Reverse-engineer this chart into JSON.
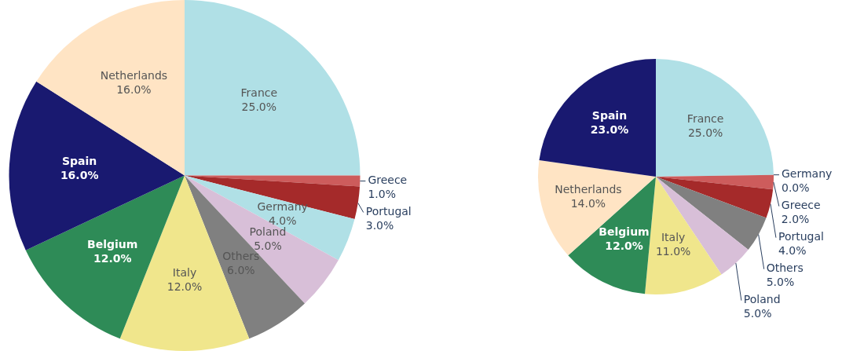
{
  "chart_data": [
    {
      "type": "pie",
      "categories": [
        "France",
        "Greece",
        "Portugal",
        "Germany",
        "Poland",
        "Others",
        "Italy",
        "Belgium",
        "Spain",
        "Netherlands"
      ],
      "values": [
        25,
        1,
        3,
        4,
        5,
        6,
        12,
        12,
        16,
        16
      ],
      "value_labels": [
        "25.0%",
        "1.0%",
        "3.0%",
        "4.0%",
        "5.0%",
        "6.0%",
        "12.0%",
        "12.0%",
        "16.0%",
        "16.0%"
      ],
      "colors": [
        "#b0e0e6",
        "#cd5c5c",
        "#a52a2a",
        "#b0e0e6",
        "#d8bfd8",
        "#808080",
        "#f0e68c",
        "#2e8b57",
        "#191970",
        "#ffe4c4"
      ]
    },
    {
      "type": "pie",
      "categories": [
        "France",
        "Germany",
        "Greece",
        "Portugal",
        "Others",
        "Poland",
        "Italy",
        "Belgium",
        "Netherlands",
        "Spain"
      ],
      "values": [
        25,
        0,
        2,
        4,
        5,
        5,
        11,
        12,
        14,
        23
      ],
      "value_labels": [
        "25.0%",
        "0.0%",
        "2.0%",
        "4.0%",
        "5.0%",
        "5.0%",
        "11.0%",
        "12.0%",
        "14.0%",
        "23.0%"
      ],
      "colors": [
        "#b0e0e6",
        "#cd5c5c",
        "#cd5c5c",
        "#a52a2a",
        "#808080",
        "#d8bfd8",
        "#f0e68c",
        "#2e8b57",
        "#ffe4c4",
        "#191970"
      ]
    }
  ]
}
